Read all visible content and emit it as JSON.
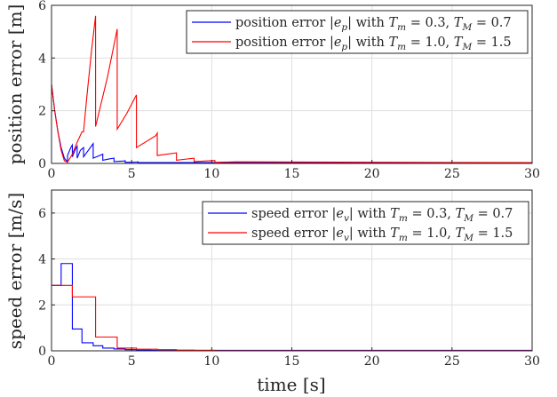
{
  "chart_data": [
    {
      "type": "line",
      "ylabel": "position error [m]",
      "xlabel": "",
      "xlim": [
        0,
        30
      ],
      "ylim": [
        0,
        6
      ],
      "xticks": [
        "0",
        "5",
        "10",
        "15",
        "20",
        "25",
        "30"
      ],
      "yticks": [
        "0",
        "2",
        "4",
        "6"
      ],
      "grid": true,
      "legend_position": "top-right",
      "series": [
        {
          "name": "position error |e_p| with T_m = 0.3, T_M = 0.7",
          "color": "#0000ff",
          "x": [
            0.0,
            0.2,
            0.4,
            0.6,
            0.8,
            1.0,
            1.0,
            1.2,
            1.3,
            1.3,
            1.5,
            1.6,
            1.6,
            1.8,
            2.0,
            2.0,
            2.3,
            2.6,
            2.6,
            2.8,
            3.2,
            3.2,
            3.6,
            3.9,
            3.9,
            4.5,
            4.6,
            4.6,
            5.3,
            5.4,
            5.4,
            6.2,
            30.0
          ],
          "y": [
            3.0,
            2.0,
            1.2,
            0.6,
            0.2,
            0.05,
            0.3,
            0.6,
            0.7,
            0.25,
            0.55,
            0.65,
            0.2,
            0.5,
            0.6,
            0.25,
            0.5,
            0.75,
            0.2,
            0.25,
            0.35,
            0.12,
            0.17,
            0.2,
            0.07,
            0.09,
            0.1,
            0.04,
            0.05,
            0.06,
            0.03,
            0.03,
            0.03
          ]
        },
        {
          "name": "position error |e_p| with T_m = 1.0, T_M = 1.5",
          "color": "#ff0000",
          "x": [
            0.0,
            0.2,
            0.4,
            0.6,
            0.8,
            1.0,
            1.3,
            1.6,
            1.9,
            2.0,
            2.2,
            2.5,
            2.75,
            2.75,
            3.5,
            4.1,
            4.1,
            4.7,
            5.3,
            5.3,
            6.5,
            6.6,
            6.6,
            7.8,
            7.8,
            8.9,
            8.9,
            10.2,
            10.2,
            11.5,
            30.0
          ],
          "y": [
            3.0,
            2.0,
            1.2,
            0.5,
            0.1,
            0.05,
            0.35,
            0.8,
            1.2,
            1.2,
            2.5,
            4.3,
            5.6,
            1.4,
            3.3,
            5.1,
            1.3,
            1.9,
            2.6,
            0.6,
            1.05,
            1.15,
            0.3,
            0.4,
            0.12,
            0.2,
            0.07,
            0.11,
            0.04,
            0.06,
            0.03
          ]
        }
      ]
    },
    {
      "type": "line",
      "ylabel": "speed error [m/s]",
      "xlabel": "time [s]",
      "xlim": [
        0,
        30
      ],
      "ylim": [
        0,
        7
      ],
      "xticks": [
        "0",
        "5",
        "10",
        "15",
        "20",
        "25",
        "30"
      ],
      "yticks": [
        "0",
        "2",
        "4",
        "6"
      ],
      "grid": true,
      "legend_position": "top-right",
      "series": [
        {
          "name": "speed error |e_v| with T_m = 0.3, T_M = 0.7",
          "color": "#0000ff",
          "x": [
            0.0,
            0.0,
            0.6,
            0.6,
            1.3,
            1.3,
            1.9,
            1.9,
            2.6,
            2.6,
            3.2,
            3.2,
            3.9,
            3.9,
            4.6,
            4.6,
            5.3,
            5.3,
            6.2,
            6.2,
            30.0
          ],
          "y": [
            7.0,
            2.85,
            2.85,
            3.8,
            3.8,
            0.95,
            0.95,
            0.35,
            0.35,
            0.22,
            0.22,
            0.12,
            0.12,
            0.08,
            0.08,
            0.05,
            0.05,
            0.03,
            0.03,
            0.02,
            0.02
          ]
        },
        {
          "name": "speed error |e_v| with T_m = 1.0, T_M = 1.5",
          "color": "#ff0000",
          "x": [
            0.0,
            0.0,
            1.3,
            1.3,
            2.75,
            2.75,
            4.1,
            4.1,
            5.3,
            5.3,
            6.6,
            6.6,
            7.8,
            7.8,
            8.9,
            8.9,
            10.2,
            10.2,
            30.0
          ],
          "y": [
            7.0,
            2.85,
            2.85,
            2.35,
            2.35,
            0.6,
            0.6,
            0.12,
            0.12,
            0.07,
            0.07,
            0.05,
            0.05,
            0.03,
            0.03,
            0.02,
            0.02,
            0.01,
            0.01
          ]
        }
      ]
    }
  ],
  "legends": [
    [
      {
        "pre": "position error ",
        "math": "|e",
        "sub": "p",
        "post": "| with ",
        "t1": "T",
        "s1": "m",
        "v1": " = 0.3, ",
        "t2": "T",
        "s2": "M",
        "v2": " = 0.7"
      },
      {
        "pre": "position error ",
        "math": "|e",
        "sub": "p",
        "post": "| with ",
        "t1": "T",
        "s1": "m",
        "v1": " = 1.0, ",
        "t2": "T",
        "s2": "M",
        "v2": " = 1.5"
      }
    ],
    [
      {
        "pre": "speed error ",
        "math": "|e",
        "sub": "v",
        "post": "| with ",
        "t1": "T",
        "s1": "m",
        "v1": " = 0.3, ",
        "t2": "T",
        "s2": "M",
        "v2": " = 0.7"
      },
      {
        "pre": "speed error ",
        "math": "|e",
        "sub": "v",
        "post": "| with ",
        "t1": "T",
        "s1": "m",
        "v1": " = 1.0, ",
        "t2": "T",
        "s2": "M",
        "v2": " = 1.5"
      }
    ]
  ]
}
